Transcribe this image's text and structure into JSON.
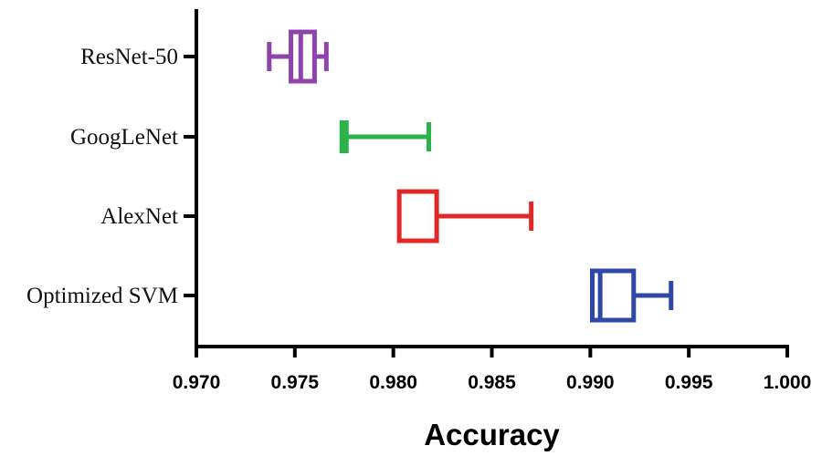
{
  "chart_data": {
    "type": "box",
    "orientation": "horizontal",
    "title": "",
    "xlabel": "Accuracy",
    "ylabel": "",
    "xlim": [
      0.97,
      1.0
    ],
    "x_ticks": [
      0.97,
      0.975,
      0.98,
      0.985,
      0.99,
      0.995,
      1.0
    ],
    "x_tick_labels": [
      "0.970",
      "0.975",
      "0.980",
      "0.985",
      "0.990",
      "0.995",
      "1.000"
    ],
    "grid": false,
    "legend": "none",
    "categories": [
      "ResNet-50",
      "GoogLeNet",
      "AlexNet",
      "Optimized SVM"
    ],
    "series": [
      {
        "category": "ResNet-50",
        "color": "#8e44ad",
        "min": 0.9737,
        "q1": 0.9748,
        "median": 0.9753,
        "q3": 0.976,
        "max": 0.9766
      },
      {
        "category": "GoogLeNet",
        "color": "#2bb34a",
        "min": 0.9775,
        "q1": 0.9775,
        "median": 0.9775,
        "q3": 0.9775,
        "max": 0.9818
      },
      {
        "category": "AlexNet",
        "color": "#e02828",
        "min": 0.9803,
        "q1": 0.9803,
        "median": 0.9803,
        "q3": 0.9822,
        "max": 0.987
      },
      {
        "category": "Optimized SVM",
        "color": "#2f48a8",
        "min": 0.9901,
        "q1": 0.9901,
        "median": 0.9905,
        "q3": 0.9922,
        "max": 0.9941
      }
    ]
  }
}
